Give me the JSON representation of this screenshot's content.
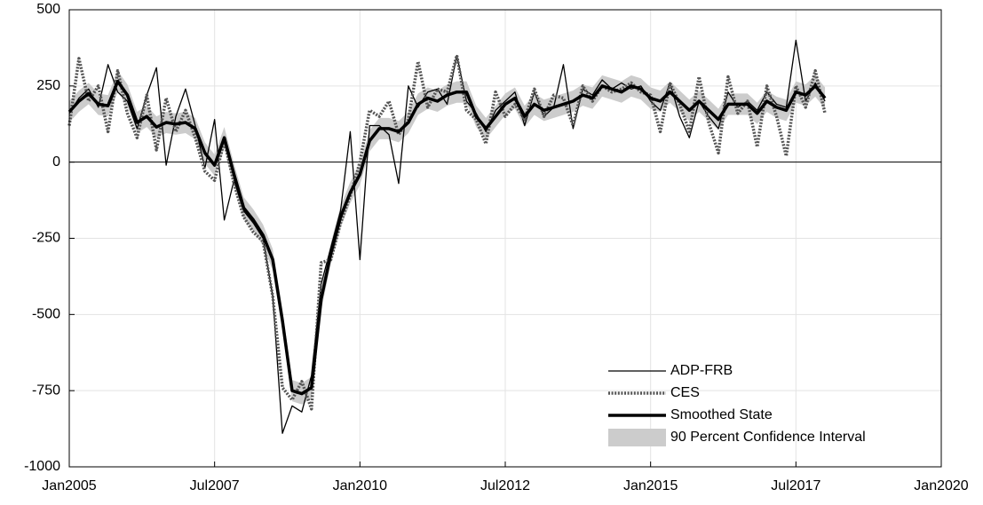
{
  "chart_data": {
    "type": "line",
    "x": [
      "2005-01",
      "2005-03",
      "2005-05",
      "2005-07",
      "2005-09",
      "2005-11",
      "2006-01",
      "2006-03",
      "2006-05",
      "2006-07",
      "2006-09",
      "2006-11",
      "2007-01",
      "2007-03",
      "2007-05",
      "2007-07",
      "2007-09",
      "2007-11",
      "2008-01",
      "2008-03",
      "2008-05",
      "2008-07",
      "2008-09",
      "2008-11",
      "2009-01",
      "2009-03",
      "2009-05",
      "2009-07",
      "2009-09",
      "2009-11",
      "2010-01",
      "2010-03",
      "2010-05",
      "2010-07",
      "2010-09",
      "2010-11",
      "2011-01",
      "2011-03",
      "2011-05",
      "2011-07",
      "2011-09",
      "2011-11",
      "2012-01",
      "2012-03",
      "2012-05",
      "2012-07",
      "2012-09",
      "2012-11",
      "2013-01",
      "2013-03",
      "2013-05",
      "2013-07",
      "2013-09",
      "2013-11",
      "2014-01",
      "2014-03",
      "2014-05",
      "2014-07",
      "2014-09",
      "2014-11",
      "2015-01",
      "2015-03",
      "2015-05",
      "2015-07",
      "2015-09",
      "2015-11",
      "2016-01",
      "2016-03",
      "2016-05",
      "2016-07",
      "2016-09",
      "2016-11",
      "2017-01",
      "2017-03",
      "2017-05",
      "2017-07",
      "2017-09",
      "2017-11",
      "2018-01"
    ],
    "band": {
      "name": "90 Percent Confidence Interval",
      "color": "#cccccc",
      "lower": [
        130,
        165,
        190,
        155,
        150,
        230,
        185,
        95,
        115,
        80,
        95,
        90,
        95,
        75,
        -5,
        -45,
        45,
        -75,
        -185,
        -225,
        -275,
        -355,
        -555,
        -785,
        -795,
        -775,
        -485,
        -335,
        -215,
        -135,
        -75,
        35,
        75,
        75,
        65,
        95,
        155,
        175,
        165,
        185,
        195,
        195,
        115,
        75,
        115,
        155,
        175,
        115,
        155,
        135,
        145,
        155,
        165,
        185,
        175,
        215,
        205,
        195,
        215,
        205,
        175,
        165,
        195,
        165,
        135,
        165,
        135,
        105,
        155,
        155,
        155,
        125,
        165,
        145,
        135,
        195,
        185,
        215,
        175
      ],
      "upper": [
        200,
        235,
        260,
        225,
        220,
        300,
        255,
        165,
        185,
        150,
        165,
        160,
        165,
        145,
        65,
        25,
        115,
        -5,
        -115,
        -155,
        -205,
        -285,
        -485,
        -715,
        -725,
        -705,
        -415,
        -265,
        -145,
        -65,
        -5,
        105,
        145,
        145,
        135,
        165,
        225,
        245,
        235,
        255,
        265,
        265,
        185,
        145,
        185,
        225,
        245,
        185,
        225,
        205,
        215,
        225,
        235,
        255,
        245,
        285,
        275,
        265,
        285,
        275,
        245,
        235,
        265,
        235,
        205,
        235,
        205,
        175,
        225,
        225,
        225,
        195,
        235,
        215,
        205,
        265,
        255,
        285,
        245
      ]
    },
    "series": [
      {
        "name": "ADP-FRB",
        "color": "#000000",
        "linewidth": 1.3,
        "line_style": "solid",
        "values": [
          160,
          210,
          240,
          180,
          320,
          230,
          200,
          110,
          220,
          310,
          -10,
          150,
          240,
          120,
          -20,
          140,
          -190,
          -60,
          -160,
          -200,
          -250,
          -440,
          -890,
          -800,
          -820,
          -700,
          -400,
          -280,
          -160,
          100,
          -320,
          120,
          120,
          90,
          -70,
          250,
          180,
          230,
          240,
          190,
          350,
          200,
          160,
          100,
          170,
          200,
          230,
          120,
          230,
          150,
          180,
          320,
          110,
          240,
          220,
          270,
          240,
          260,
          240,
          250,
          200,
          170,
          260,
          150,
          80,
          200,
          150,
          110,
          230,
          180,
          200,
          170,
          230,
          190,
          180,
          400,
          200,
          260,
          200
        ]
      },
      {
        "name": "CES",
        "color": "#555555",
        "linewidth": 3.5,
        "line_style": "dotted",
        "values": [
          120,
          340,
          200,
          250,
          100,
          300,
          160,
          80,
          220,
          40,
          210,
          100,
          170,
          80,
          -30,
          -60,
          70,
          -70,
          -180,
          -230,
          -260,
          -440,
          -740,
          -780,
          -720,
          -810,
          -330,
          -320,
          -200,
          -110,
          0,
          170,
          150,
          200,
          90,
          140,
          330,
          180,
          240,
          230,
          350,
          170,
          140,
          60,
          230,
          150,
          190,
          140,
          240,
          150,
          220,
          210,
          120,
          250,
          200,
          250,
          230,
          240,
          260,
          230,
          220,
          100,
          260,
          190,
          100,
          280,
          130,
          30,
          280,
          160,
          200,
          50,
          250,
          150,
          20,
          250,
          180,
          300,
          160
        ]
      },
      {
        "name": "Smoothed State",
        "color": "#000000",
        "linewidth": 3.5,
        "line_style": "solid",
        "values": [
          165,
          200,
          225,
          190,
          185,
          265,
          220,
          130,
          150,
          115,
          130,
          125,
          130,
          110,
          30,
          -10,
          80,
          -40,
          -150,
          -190,
          -240,
          -320,
          -520,
          -750,
          -760,
          -740,
          -450,
          -300,
          -180,
          -100,
          -40,
          70,
          110,
          110,
          100,
          130,
          190,
          210,
          200,
          220,
          230,
          230,
          150,
          110,
          150,
          190,
          210,
          150,
          190,
          170,
          180,
          190,
          200,
          220,
          210,
          250,
          240,
          230,
          250,
          240,
          210,
          200,
          230,
          200,
          170,
          200,
          170,
          140,
          190,
          190,
          190,
          160,
          200,
          180,
          170,
          230,
          220,
          250,
          210
        ]
      }
    ],
    "xlim": [
      "2005-01",
      "2020-01"
    ],
    "xticks": [
      {
        "value": "2005-01",
        "label": "Jan2005"
      },
      {
        "value": "2007-07",
        "label": "Jul2007"
      },
      {
        "value": "2010-01",
        "label": "Jan2010"
      },
      {
        "value": "2012-07",
        "label": "Jul2012"
      },
      {
        "value": "2015-01",
        "label": "Jan2015"
      },
      {
        "value": "2017-07",
        "label": "Jul2017"
      },
      {
        "value": "2020-01",
        "label": "Jan2020"
      }
    ],
    "ylim": [
      -1000,
      500
    ],
    "yticks": [
      -1000,
      -750,
      -500,
      -250,
      0,
      250,
      500
    ],
    "grid": true,
    "legend": "lower right"
  }
}
